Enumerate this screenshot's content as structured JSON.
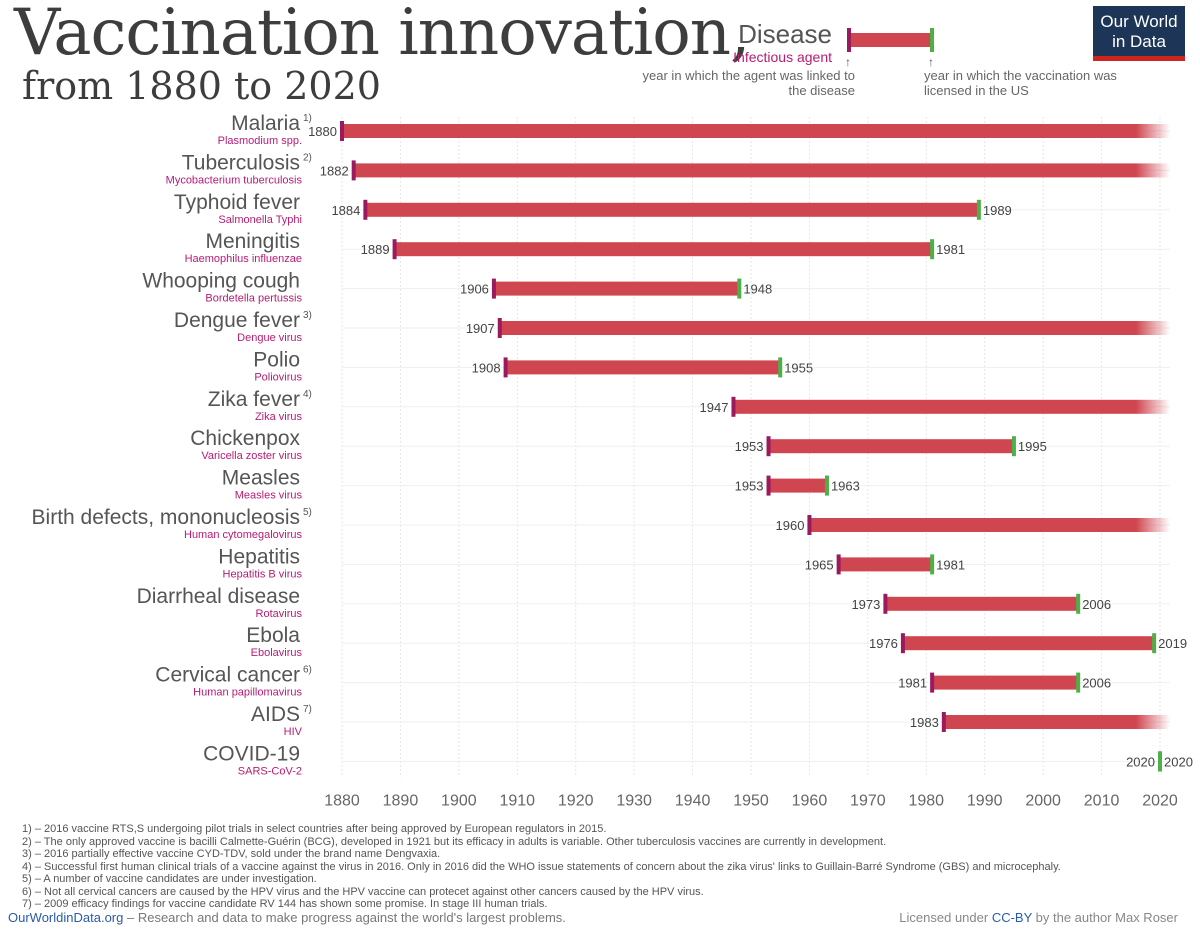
{
  "title": "Vaccination innovation,",
  "subtitle": "from 1880 to 2020",
  "logo": {
    "line1": "Our World",
    "line2": "in Data"
  },
  "legend": {
    "disease": "Disease",
    "agent": "Infectious agent",
    "note_left": "year in which the agent was linked to the disease",
    "note_right": "year in which the vaccination was licensed in the US",
    "arrow": "↑"
  },
  "colors": {
    "bar": "#d04650",
    "start_marker": "#9a1a5e",
    "end_marker": "#4daf47",
    "agent_text": "#b71b76",
    "disease_text": "#555555",
    "grid": "#e6e6e6"
  },
  "chart_data": {
    "type": "bar",
    "orientation": "horizontal-range",
    "xlim": [
      1880,
      2020
    ],
    "x_ticks": [
      1880,
      1890,
      1900,
      1910,
      1920,
      1930,
      1940,
      1950,
      1960,
      1970,
      1980,
      1990,
      2000,
      2010,
      2020
    ],
    "grid": true,
    "rows": [
      {
        "disease": "Malaria",
        "note": "1)",
        "agent": "Plasmodium spp.",
        "start": 1880,
        "end": null
      },
      {
        "disease": "Tuberculosis",
        "note": "2)",
        "agent": "Mycobacterium tuberculosis",
        "start": 1882,
        "end": null
      },
      {
        "disease": "Typhoid fever",
        "note": "",
        "agent": "Salmonella Typhi",
        "start": 1884,
        "end": 1989
      },
      {
        "disease": "Meningitis",
        "note": "",
        "agent": "Haemophilus influenzae",
        "start": 1889,
        "end": 1981
      },
      {
        "disease": "Whooping cough",
        "note": "",
        "agent": "Bordetella pertussis",
        "start": 1906,
        "end": 1948
      },
      {
        "disease": "Dengue fever",
        "note": "3)",
        "agent": "Dengue virus",
        "start": 1907,
        "end": null
      },
      {
        "disease": "Polio",
        "note": "",
        "agent": "Poliovirus",
        "start": 1908,
        "end": 1955
      },
      {
        "disease": "Zika fever",
        "note": "4)",
        "agent": "Zika virus",
        "start": 1947,
        "end": null
      },
      {
        "disease": "Chickenpox",
        "note": "",
        "agent": "Varicella zoster virus",
        "start": 1953,
        "end": 1995
      },
      {
        "disease": "Measles",
        "note": "",
        "agent": "Measles virus",
        "start": 1953,
        "end": 1963
      },
      {
        "disease": "Birth defects, mononucleosis",
        "note": "5)",
        "agent": "Human cytomegalovirus",
        "start": 1960,
        "end": null
      },
      {
        "disease": "Hepatitis",
        "note": "",
        "agent": "Hepatitis B virus",
        "start": 1965,
        "end": 1981
      },
      {
        "disease": "Diarrheal disease",
        "note": "",
        "agent": "Rotavirus",
        "start": 1973,
        "end": 2006
      },
      {
        "disease": "Ebola",
        "note": "",
        "agent": "Ebolavirus",
        "start": 1976,
        "end": 2019
      },
      {
        "disease": "Cervical cancer",
        "note": "6)",
        "agent": "Human papillomavirus",
        "start": 1981,
        "end": 2006
      },
      {
        "disease": "AIDS",
        "note": "7)",
        "agent": "HIV",
        "start": 1983,
        "end": null
      },
      {
        "disease": "COVID-19",
        "note": "",
        "agent": "SARS-CoV-2",
        "start": 2020,
        "end": 2020
      }
    ]
  },
  "footnotes": [
    "1) – 2016 vaccine RTS,S undergoing pilot trials in select countries after being approved by European regulators in 2015.",
    "2) – The only approved vaccine is bacilli Calmette-Guérin (BCG), developed in 1921 but its efficacy in adults is variable. Other tuberculosis vaccines are currently in development.",
    "3) – 2016 partially effective vaccine CYD-TDV, sold under the brand name Dengvaxia.",
    "4) – Successful first human clinical trials of a vaccine against the virus in 2016. Only in 2016 did the WHO issue statements of concern about the zika virus' links to Guillain-Barré Syndrome (GBS) and microcephaly.",
    "5) – A number of vaccine candidates are under investigation.",
    "6) – Not all cervical cancers are caused by the HPV virus and the HPV vaccine can protecet against other cancers caused by the HPV virus.",
    "7) – 2009 efficacy findings for vaccine candidate RV 144 has shown some promise. In stage III human trials."
  ],
  "footer": {
    "site": "OurWorldinData.org",
    "tagline": " – Research and data to make progress against the world's largest problems.",
    "license_prefix": "Licensed under ",
    "license": "CC-BY",
    "license_suffix": " by the author Max Roser"
  }
}
